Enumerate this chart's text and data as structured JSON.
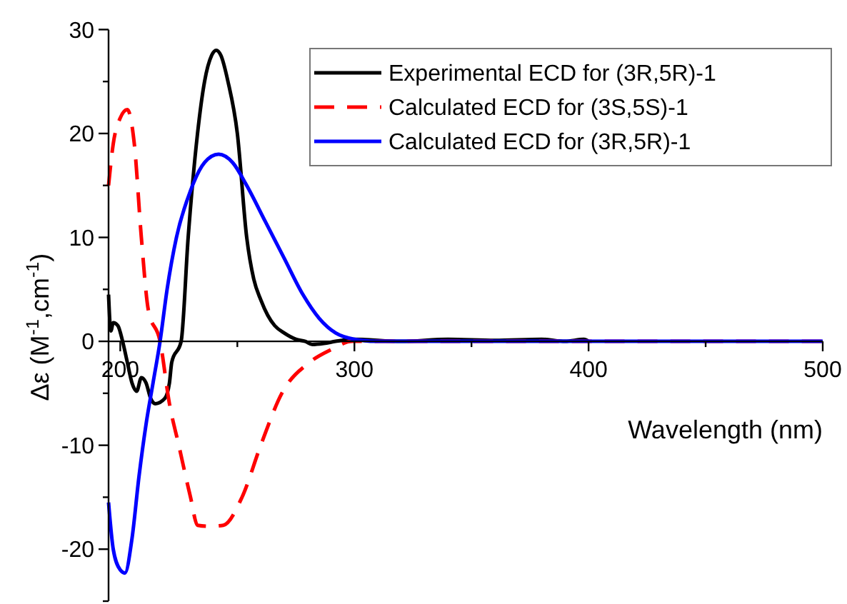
{
  "chart_data": {
    "type": "line",
    "xlabel": "Wavelength (nm)",
    "ylabel": "Δε (M$^{-1}$,cm$^{-1}$)",
    "xlim": [
      195,
      500
    ],
    "ylim": [
      -25,
      30
    ],
    "xticks": [
      200,
      {
        "value": 250,
        "label": null
      },
      300,
      {
        "value": 350,
        "label": null
      },
      400,
      {
        "value": 450,
        "label": null
      },
      500
    ],
    "yticks": [
      {
        "value": -25,
        "label": null
      },
      -20,
      {
        "value": -15,
        "label": null
      },
      -10,
      {
        "value": -5,
        "label": null
      },
      0,
      {
        "value": 5,
        "label": null
      },
      10,
      {
        "value": 15,
        "label": null
      },
      20,
      {
        "value": 25,
        "label": null
      },
      30
    ],
    "grid": false,
    "legend": "top right",
    "series": [
      {
        "name": "Experimental ECD for (3R,5R)-1",
        "color": "#000000",
        "line_style": "solid",
        "x": [
          195,
          196,
          197,
          199,
          201,
          203,
          205,
          207,
          209,
          211,
          213,
          215,
          219,
          221,
          222,
          226,
          229,
          233,
          236,
          239,
          241,
          243,
          246,
          250,
          254,
          257,
          260,
          263,
          266,
          270,
          275,
          279,
          282,
          287,
          292,
          300,
          320,
          340,
          360,
          380,
          390,
          398,
          400
        ],
        "values": [
          4.5,
          1,
          1.8,
          1.5,
          0,
          -2,
          -4,
          -4.8,
          -3.5,
          -4,
          -5.5,
          -6,
          -5.5,
          -4,
          -2,
          0,
          10,
          20,
          25,
          27.5,
          28,
          27.5,
          25,
          20,
          10,
          6,
          4,
          2.5,
          1.5,
          0.8,
          0.2,
          0,
          -0.3,
          -0.2,
          0,
          0.2,
          0,
          0.2,
          0.1,
          0.2,
          0,
          0.2,
          0
        ]
      },
      {
        "name": "Calculated ECD for (3S,5S)-1",
        "color": "#ff0000",
        "line_style": "dashed",
        "x": [
          195,
          197,
          200,
          203,
          206,
          209,
          212,
          217,
          221,
          225,
          230,
          233,
          238,
          244,
          252,
          260,
          269,
          281,
          290,
          299,
          310,
          500
        ],
        "values": [
          15,
          19,
          21.5,
          22.3,
          19,
          10,
          3,
          0,
          -6,
          -10,
          -15,
          -17.7,
          -17.8,
          -17.7,
          -15,
          -10,
          -5,
          -2,
          -0.8,
          0,
          0,
          0
        ]
      },
      {
        "name": "Calculated ECD for (3R,5R)-1",
        "color": "#0000ff",
        "line_style": "solid",
        "x": [
          195,
          197,
          200,
          202,
          205,
          208,
          211,
          214,
          217,
          220,
          224,
          230,
          236,
          242,
          248,
          254,
          262,
          270,
          278,
          285,
          292,
          300,
          310,
          500
        ],
        "values": [
          -15.5,
          -20,
          -22,
          -22.3,
          -19,
          -13,
          -8,
          -4,
          0,
          5,
          10,
          14.5,
          17.2,
          18,
          17.2,
          15,
          11.5,
          8,
          4.5,
          2.2,
          0.8,
          0.2,
          0,
          0
        ]
      }
    ]
  }
}
